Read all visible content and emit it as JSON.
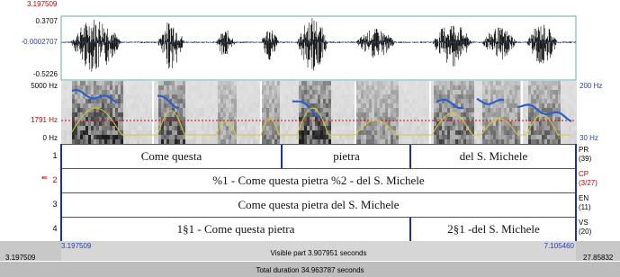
{
  "header": {
    "cursor_time": "3.197509"
  },
  "waveform": {
    "max": "0.3707",
    "center": "-0.0002707",
    "min": "-0.5226"
  },
  "spectrogram": {
    "top": "5000 Hz",
    "cursor": "1791 Hz",
    "bottom": "0 Hz",
    "pitch_top": "200 Hz",
    "pitch_bottom": "30 Hz"
  },
  "tiers": [
    {
      "number": "1",
      "name": "PR",
      "count": "(39)",
      "intervals": [
        "Come questa",
        "pietra",
        "del S. Michele"
      ]
    },
    {
      "number": "2",
      "name": "CP",
      "count": "(3/27)",
      "intervals": [
        "%1 - Come questa pietra %2 - del S. Michele"
      ]
    },
    {
      "number": "3",
      "name": "EN",
      "count": "(11)",
      "intervals": [
        "Come questa pietra del S. Michele"
      ]
    },
    {
      "number": "4",
      "name": "VS",
      "count": "(20)",
      "intervals": [
        "1§1 - Come questa pietra",
        "2§1 -del S. Michele"
      ]
    }
  ],
  "footer": {
    "left_time": "3.197509",
    "visible_start": "3.197509",
    "visible": "Visible part 3.907951 seconds",
    "visible_end": "7.105460",
    "right_time": "27.85832",
    "total": "Total duration 34.963787 seconds"
  }
}
